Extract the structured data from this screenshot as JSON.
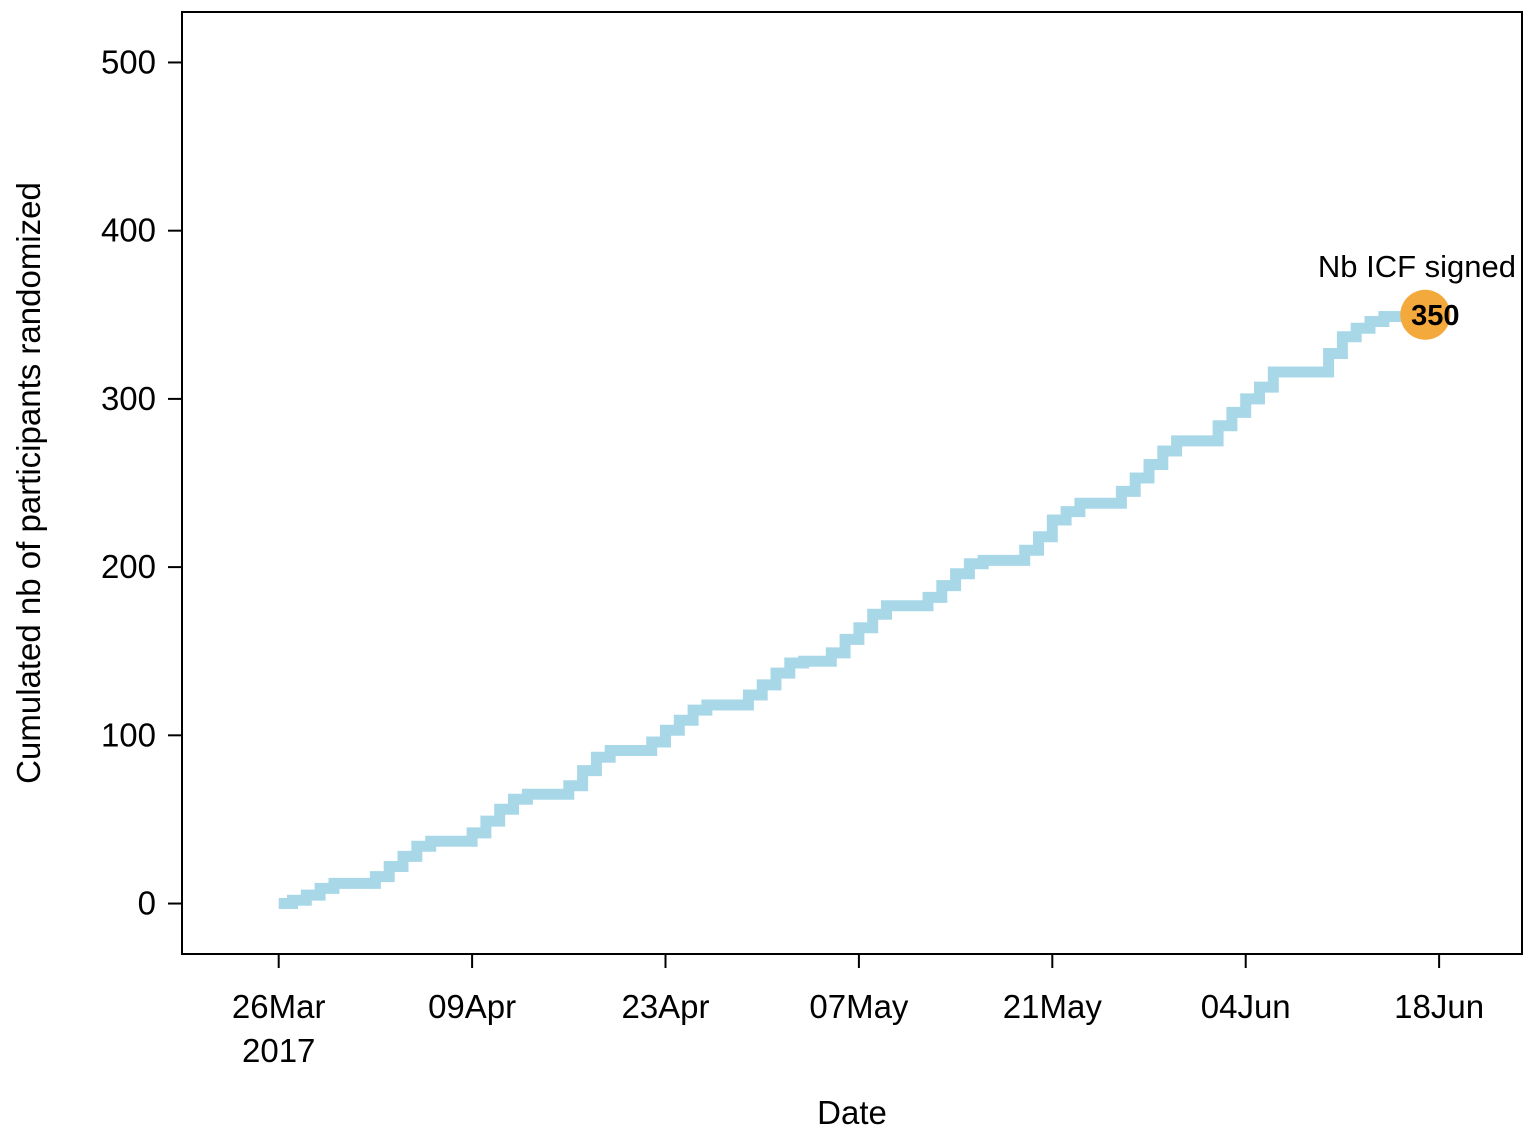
{
  "colors": {
    "line": "#a8d8e8",
    "marker": "#f4a93c",
    "axis": "#000000"
  },
  "chart_data": {
    "type": "line",
    "step": true,
    "title": "",
    "xlabel": "Date",
    "ylabel": "Cumulated nb of participants randomized",
    "xlim": [
      "2017-03-19",
      "2017-06-24"
    ],
    "ylim": [
      -30,
      530
    ],
    "x_ticks": [
      {
        "date": "2017-03-26",
        "label": "26Mar",
        "sublabel": "2017"
      },
      {
        "date": "2017-04-09",
        "label": "09Apr",
        "sublabel": ""
      },
      {
        "date": "2017-04-23",
        "label": "23Apr",
        "sublabel": ""
      },
      {
        "date": "2017-05-07",
        "label": "07May",
        "sublabel": ""
      },
      {
        "date": "2017-05-21",
        "label": "21May",
        "sublabel": ""
      },
      {
        "date": "2017-06-04",
        "label": "04Jun",
        "sublabel": ""
      },
      {
        "date": "2017-06-18",
        "label": "18Jun",
        "sublabel": ""
      }
    ],
    "y_ticks": [
      0,
      100,
      200,
      300,
      400,
      500
    ],
    "grid": false,
    "series": [
      {
        "x": [
          "2017-03-26",
          "2017-03-27",
          "2017-03-28",
          "2017-03-29",
          "2017-03-30",
          "2017-03-31",
          "2017-04-01",
          "2017-04-02",
          "2017-04-03",
          "2017-04-04",
          "2017-04-05",
          "2017-04-06",
          "2017-04-07",
          "2017-04-08",
          "2017-04-09",
          "2017-04-10",
          "2017-04-11",
          "2017-04-12",
          "2017-04-13",
          "2017-04-14",
          "2017-04-15",
          "2017-04-16",
          "2017-04-17",
          "2017-04-18",
          "2017-04-19",
          "2017-04-20",
          "2017-04-21",
          "2017-04-22",
          "2017-04-23",
          "2017-04-24",
          "2017-04-25",
          "2017-04-26",
          "2017-04-27",
          "2017-04-28",
          "2017-04-29",
          "2017-04-30",
          "2017-05-01",
          "2017-05-02",
          "2017-05-03",
          "2017-05-04",
          "2017-05-05",
          "2017-05-06",
          "2017-05-07",
          "2017-05-08",
          "2017-05-09",
          "2017-05-10",
          "2017-05-11",
          "2017-05-12",
          "2017-05-13",
          "2017-05-14",
          "2017-05-15",
          "2017-05-16",
          "2017-05-17",
          "2017-05-18",
          "2017-05-19",
          "2017-05-20",
          "2017-05-21",
          "2017-05-22",
          "2017-05-23",
          "2017-05-24",
          "2017-05-25",
          "2017-05-26",
          "2017-05-27",
          "2017-05-28",
          "2017-05-29",
          "2017-05-30",
          "2017-05-31",
          "2017-06-01",
          "2017-06-02",
          "2017-06-03",
          "2017-06-04",
          "2017-06-05",
          "2017-06-06",
          "2017-06-07",
          "2017-06-08",
          "2017-06-09",
          "2017-06-10",
          "2017-06-11",
          "2017-06-12",
          "2017-06-13",
          "2017-06-14",
          "2017-06-15",
          "2017-06-16",
          "2017-06-17"
        ],
        "values": [
          0,
          2,
          5,
          9,
          12,
          12,
          12,
          16,
          22,
          28,
          34,
          37,
          37,
          37,
          42,
          49,
          56,
          62,
          65,
          65,
          65,
          70,
          79,
          87,
          91,
          91,
          91,
          96,
          103,
          109,
          115,
          118,
          118,
          118,
          124,
          130,
          137,
          143,
          144,
          144,
          149,
          157,
          164,
          172,
          177,
          177,
          177,
          182,
          189,
          196,
          202,
          204,
          204,
          204,
          210,
          218,
          228,
          233,
          238,
          238,
          238,
          245,
          253,
          261,
          269,
          275,
          275,
          275,
          284,
          292,
          300,
          307,
          316,
          316,
          316,
          316,
          327,
          337,
          342,
          346,
          349,
          349,
          350,
          350
        ]
      }
    ],
    "annotation": {
      "date": "2017-06-17",
      "value": 350,
      "label": "Nb ICF signed",
      "marker_label": "350"
    }
  }
}
